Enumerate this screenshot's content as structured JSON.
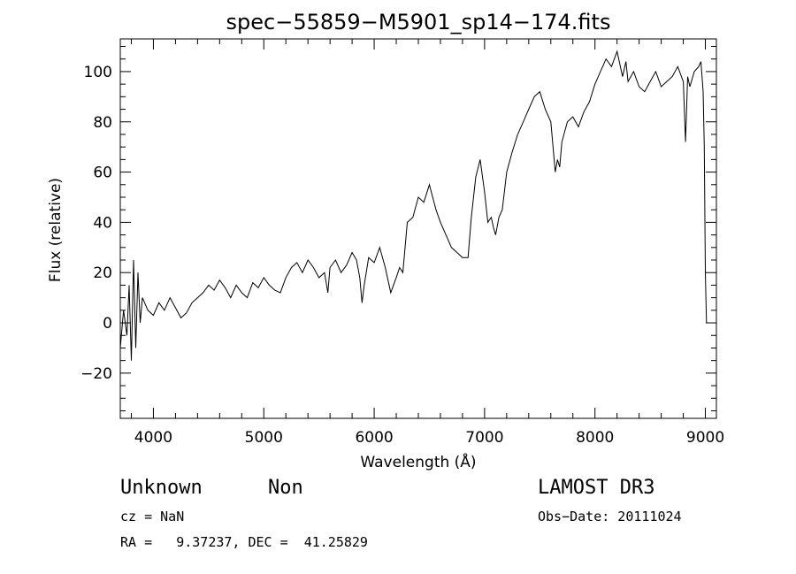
{
  "chart_data": {
    "type": "line",
    "title": "spec−55859−M5901_sp14−174.fits",
    "xlabel": "Wavelength (Å)",
    "ylabel": "Flux (relative)",
    "xlim": [
      3700,
      9100
    ],
    "ylim": [
      -38,
      113
    ],
    "xticks": [
      4000,
      5000,
      6000,
      7000,
      8000,
      9000
    ],
    "yticks": [
      -20,
      0,
      20,
      40,
      60,
      80,
      100
    ],
    "ytick_labels": [
      "−20",
      "0",
      "20",
      "40",
      "60",
      "80",
      "100"
    ],
    "grid": false,
    "series": [
      {
        "x": [
          3700,
          3730,
          3760,
          3780,
          3800,
          3820,
          3840,
          3860,
          3880,
          3900,
          3950,
          4000,
          4050,
          4100,
          4150,
          4200,
          4250,
          4300,
          4350,
          4400,
          4450,
          4500,
          4550,
          4600,
          4650,
          4700,
          4750,
          4800,
          4850,
          4900,
          4950,
          5000,
          5050,
          5100,
          5150,
          5200,
          5250,
          5300,
          5350,
          5400,
          5450,
          5500,
          5550,
          5580,
          5600,
          5650,
          5700,
          5750,
          5800,
          5840,
          5870,
          5890,
          5910,
          5950,
          6000,
          6050,
          6100,
          6150,
          6200,
          6230,
          6260,
          6300,
          6350,
          6400,
          6450,
          6500,
          6530,
          6560,
          6600,
          6650,
          6700,
          6750,
          6800,
          6850,
          6880,
          6920,
          6960,
          7000,
          7030,
          7060,
          7080,
          7100,
          7130,
          7160,
          7200,
          7250,
          7300,
          7350,
          7400,
          7450,
          7500,
          7550,
          7600,
          7640,
          7660,
          7680,
          7700,
          7750,
          7800,
          7850,
          7900,
          7950,
          8000,
          8050,
          8100,
          8150,
          8200,
          8250,
          8280,
          8300,
          8350,
          8400,
          8450,
          8500,
          8550,
          8600,
          8650,
          8700,
          8750,
          8800,
          8820,
          8840,
          8860,
          8900,
          8940,
          8960,
          8980,
          8990,
          9000,
          9010
        ],
        "y": [
          -10,
          5,
          -5,
          15,
          -15,
          25,
          -10,
          20,
          0,
          10,
          5,
          3,
          8,
          5,
          10,
          6,
          2,
          4,
          8,
          10,
          12,
          15,
          13,
          17,
          14,
          10,
          15,
          12,
          10,
          16,
          14,
          18,
          15,
          13,
          12,
          18,
          22,
          24,
          20,
          25,
          22,
          18,
          20,
          12,
          22,
          25,
          20,
          23,
          28,
          25,
          18,
          8,
          15,
          26,
          24,
          30,
          22,
          12,
          18,
          22,
          20,
          40,
          42,
          50,
          48,
          55,
          50,
          45,
          40,
          35,
          30,
          28,
          26,
          26,
          42,
          58,
          65,
          52,
          40,
          42,
          38,
          35,
          42,
          45,
          60,
          68,
          75,
          80,
          85,
          90,
          92,
          85,
          80,
          60,
          65,
          62,
          72,
          80,
          82,
          78,
          84,
          88,
          95,
          100,
          105,
          102,
          108,
          98,
          104,
          96,
          100,
          94,
          92,
          96,
          100,
          94,
          96,
          98,
          102,
          96,
          72,
          98,
          94,
          100,
          102,
          104,
          92,
          70,
          20,
          0
        ]
      }
    ]
  },
  "annotations": {
    "object_class": "Unknown",
    "subclass": "Non",
    "survey": "LAMOST DR3",
    "cz": "cz = NaN",
    "obs_date": "Obs−Date: 20111024",
    "coords": "RA =   9.37237, DEC =  41.25829"
  }
}
